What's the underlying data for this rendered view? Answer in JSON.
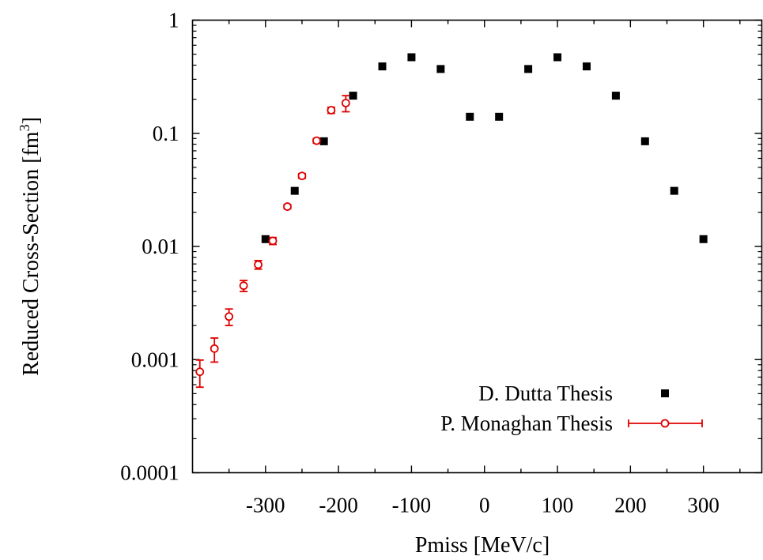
{
  "chart_data": {
    "type": "scatter",
    "title": "",
    "xlabel": "Pmiss [MeV/c]",
    "ylabel": "Reduced Cross-Section [fm",
    "ylabel_sup": "3",
    "ylabel_close": "]",
    "xlim": [
      -400,
      380
    ],
    "ylim": [
      0.0001,
      1
    ],
    "yscale": "log",
    "grid": false,
    "legend_position": "lower-right",
    "x_ticks": [
      -300,
      -200,
      -100,
      0,
      100,
      200,
      300
    ],
    "x_tick_labels": [
      "-300",
      "-200",
      "-100",
      "0",
      "100",
      "200",
      "300"
    ],
    "y_ticks": [
      0.0001,
      0.001,
      0.01,
      0.1,
      1
    ],
    "y_tick_labels": [
      "0.0001",
      "0.001",
      "0.01",
      "0.1",
      "1"
    ],
    "series": [
      {
        "name": "D. Dutta Thesis",
        "marker": "filled-square",
        "color": "#000000",
        "error_bars": false,
        "x": [
          -300,
          -260,
          -220,
          -180,
          -140,
          -100,
          -60,
          -20,
          20,
          60,
          100,
          140,
          180,
          220,
          260,
          300
        ],
        "y": [
          0.0116,
          0.031,
          0.085,
          0.215,
          0.39,
          0.47,
          0.37,
          0.14,
          0.14,
          0.37,
          0.47,
          0.39,
          0.215,
          0.085,
          0.031,
          0.0116
        ]
      },
      {
        "name": "P. Monaghan Thesis",
        "marker": "open-circle",
        "color": "#e00000",
        "error_bars": true,
        "x": [
          -390,
          -370,
          -350,
          -330,
          -310,
          -290,
          -270,
          -250,
          -230,
          -210,
          -190
        ],
        "y": [
          0.00078,
          0.00125,
          0.0024,
          0.0045,
          0.0069,
          0.0112,
          0.0225,
          0.042,
          0.086,
          0.16,
          0.185
        ],
        "y_err_low": [
          0.00021,
          0.0003,
          0.0004,
          0.0005,
          0.0006,
          0.0008,
          0.001,
          0.002,
          0.004,
          0.01,
          0.03
        ],
        "y_err_high": [
          0.00021,
          0.0003,
          0.0004,
          0.0005,
          0.0006,
          0.0008,
          0.001,
          0.002,
          0.004,
          0.01,
          0.03
        ]
      }
    ]
  }
}
